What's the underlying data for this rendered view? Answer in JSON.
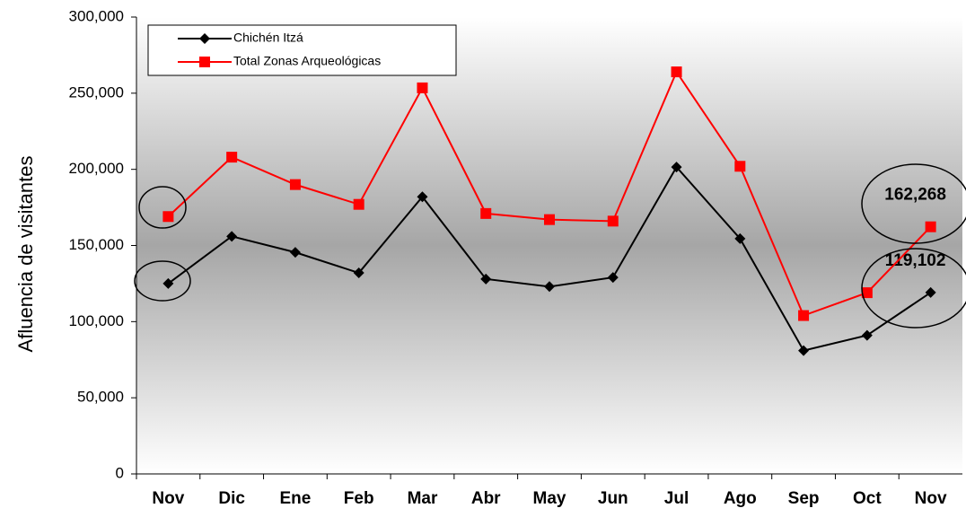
{
  "chart_data": {
    "type": "line",
    "y_label": "Afluencia de visitantes",
    "categories": [
      "Nov",
      "Dic",
      "Ene",
      "Feb",
      "Mar",
      "Abr",
      "May",
      "Jun",
      "Jul",
      "Ago",
      "Sep",
      "Oct",
      "Nov"
    ],
    "series": [
      {
        "name": "Chichén Itzá",
        "color": "#000000",
        "marker": "diamond",
        "values": [
          125000,
          156000,
          145500,
          132000,
          182000,
          128000,
          123000,
          129000,
          201500,
          154500,
          81000,
          91000,
          119102
        ],
        "value_labels": [
          null,
          null,
          null,
          null,
          null,
          null,
          null,
          null,
          null,
          null,
          null,
          null,
          "119,102"
        ]
      },
      {
        "name": "Total Zonas Arqueológicas",
        "color": "#ff0000",
        "marker": "square",
        "values": [
          169000,
          208000,
          190000,
          177000,
          253500,
          171000,
          167000,
          166000,
          264000,
          202000,
          104000,
          119000,
          162268
        ],
        "value_labels": [
          null,
          null,
          null,
          null,
          null,
          null,
          null,
          null,
          null,
          null,
          null,
          null,
          "162,268"
        ]
      }
    ],
    "ylim": [
      0,
      300000
    ],
    "yticks": [
      0,
      {
        "value": 50000,
        "label": "50,000"
      },
      {
        "value": 100000,
        "label": "100,000"
      },
      {
        "value": 150000,
        "label": "150,000"
      },
      {
        "value": 200000,
        "label": "200,000"
      },
      {
        "value": 250000,
        "label": "250,000"
      },
      {
        "value": 300000,
        "label": "300,000"
      }
    ]
  }
}
